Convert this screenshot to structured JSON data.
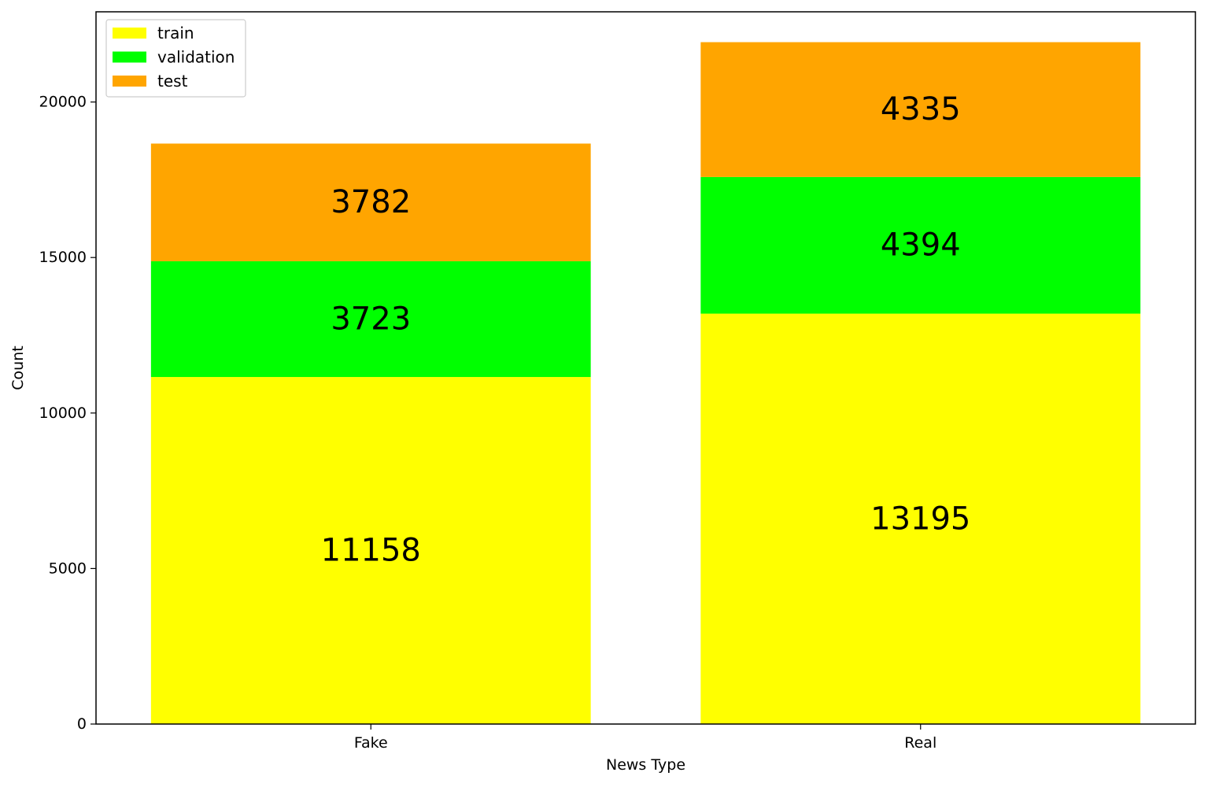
{
  "chart_data": {
    "type": "bar",
    "stacked": true,
    "title": "",
    "xlabel": "News Type",
    "ylabel": "Count",
    "categories": [
      "Fake",
      "Real"
    ],
    "series": [
      {
        "name": "train",
        "color": "#ffff00",
        "values": [
          11158,
          13195
        ]
      },
      {
        "name": "validation",
        "color": "#00ff00",
        "values": [
          3723,
          4394
        ]
      },
      {
        "name": "test",
        "color": "#ffa500",
        "values": [
          3782,
          4335
        ]
      }
    ],
    "ylim": [
      0,
      22900
    ],
    "yticks": [
      0,
      5000,
      10000,
      15000,
      20000
    ],
    "ytick_labels": [
      "0",
      "5000",
      "10000",
      "15000",
      "20000"
    ],
    "legend": {
      "position": "upper-left",
      "labels": [
        "train",
        "validation",
        "test"
      ]
    },
    "data_labels": [
      [
        "11158",
        "13195"
      ],
      [
        "3723",
        "4394"
      ],
      [
        "3782",
        "4335"
      ]
    ],
    "grid": false
  }
}
